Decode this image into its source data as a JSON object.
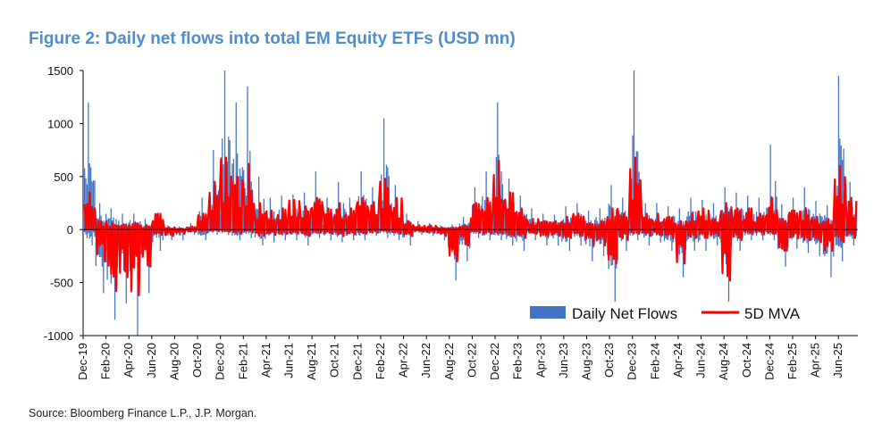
{
  "title": "Figure 2: Daily net flows into total EM Equity ETFs (USD mn)",
  "source": "Source: Bloomberg Finance L.P., J.P. Morgan.",
  "colors": {
    "title": "#4f8cc9",
    "bars": "#4472c4",
    "line": "#ff0000",
    "axis": "#000000"
  },
  "chart_data": {
    "type": "bar",
    "xlabel": "",
    "ylabel": "",
    "ylim": [
      -1000,
      1500
    ],
    "yticks": [
      -1000,
      -500,
      0,
      500,
      1000,
      1500
    ],
    "ytick_labels": [
      "-1000",
      "-500",
      "0",
      "500",
      "1000",
      "1500"
    ],
    "xlim": [
      "2019-12",
      "2025-08"
    ],
    "xtick_labels": [
      "Dec-19",
      "Feb-20",
      "Apr-20",
      "Jun-20",
      "Aug-20",
      "Oct-20",
      "Dec-20",
      "Feb-21",
      "Apr-21",
      "Jun-21",
      "Aug-21",
      "Oct-21",
      "Dec-21",
      "Feb-22",
      "Apr-22",
      "Jun-22",
      "Aug-22",
      "Oct-22",
      "Dec-22",
      "Feb-23",
      "Apr-23",
      "Jun-23",
      "Aug-23",
      "Oct-23",
      "Dec-23",
      "Feb-24",
      "Apr-24",
      "Jun-24",
      "Aug-24",
      "Oct-24",
      "Dec-24",
      "Feb-25",
      "Apr-25",
      "Jun-25"
    ],
    "grid": false,
    "legend": "bottom-right",
    "series": [
      {
        "name": "Daily Net Flows",
        "type": "bar",
        "x": [
          "Dec-19",
          "Jan-20",
          "Feb-20",
          "Mar-20",
          "Apr-20",
          "May-20",
          "Jun-20",
          "Jul-20",
          "Aug-20",
          "Sep-20",
          "Oct-20",
          "Nov-20",
          "Dec-20",
          "Jan-21",
          "Feb-21",
          "Mar-21",
          "Apr-21",
          "May-21",
          "Jun-21",
          "Jul-21",
          "Aug-21",
          "Sep-21",
          "Oct-21",
          "Nov-21",
          "Dec-21",
          "Jan-22",
          "Feb-22",
          "Mar-22",
          "Apr-22",
          "May-22",
          "Jun-22",
          "Jul-22",
          "Aug-22",
          "Sep-22",
          "Oct-22",
          "Nov-22",
          "Dec-22",
          "Jan-23",
          "Feb-23",
          "Mar-23",
          "Apr-23",
          "May-23",
          "Jun-23",
          "Jul-23",
          "Aug-23",
          "Sep-23",
          "Oct-23",
          "Nov-23",
          "Dec-23",
          "Jan-24",
          "Feb-24",
          "Mar-24",
          "Apr-24",
          "May-24",
          "Jun-24",
          "Jul-24",
          "Aug-24",
          "Sep-24",
          "Oct-24",
          "Nov-24",
          "Dec-24",
          "Jan-25",
          "Feb-25",
          "Mar-25",
          "Apr-25",
          "May-25",
          "Jun-25",
          "Jul-25"
        ],
        "max": [
          1200,
          250,
          200,
          150,
          150,
          100,
          150,
          40,
          30,
          60,
          300,
          750,
          1500,
          1200,
          1350,
          500,
          300,
          320,
          330,
          350,
          550,
          300,
          450,
          300,
          550,
          400,
          1050,
          420,
          150,
          80,
          60,
          40,
          50,
          120,
          400,
          550,
          1200,
          480,
          320,
          200,
          150,
          140,
          220,
          250,
          180,
          200,
          420,
          300,
          1500,
          250,
          250,
          220,
          200,
          300,
          280,
          250,
          400,
          350,
          320,
          300,
          800,
          240,
          300,
          400,
          270,
          230,
          1450,
          450
        ],
        "min": [
          -150,
          -600,
          -850,
          -700,
          -1000,
          -600,
          -200,
          -100,
          -100,
          -50,
          -100,
          -50,
          -50,
          -100,
          -80,
          -150,
          -120,
          -100,
          -100,
          -150,
          -80,
          -100,
          -120,
          -100,
          -100,
          -60,
          -80,
          -100,
          -150,
          -50,
          -60,
          -100,
          -480,
          -300,
          -80,
          -100,
          -100,
          -150,
          -200,
          -100,
          -150,
          -150,
          -200,
          -150,
          -300,
          -250,
          -680,
          -200,
          -100,
          -150,
          -120,
          -200,
          -450,
          -200,
          -200,
          -150,
          -680,
          -200,
          -100,
          -100,
          -100,
          -350,
          -180,
          -220,
          -250,
          -450,
          -300,
          -150
        ]
      },
      {
        "name": "5D MVA",
        "type": "line",
        "x": [
          "Dec-19",
          "Jan-20",
          "Feb-20",
          "Mar-20",
          "Apr-20",
          "May-20",
          "Jun-20",
          "Jul-20",
          "Aug-20",
          "Sep-20",
          "Oct-20",
          "Nov-20",
          "Dec-20",
          "Jan-21",
          "Feb-21",
          "Mar-21",
          "Apr-21",
          "May-21",
          "Jun-21",
          "Jul-21",
          "Aug-21",
          "Sep-21",
          "Oct-21",
          "Nov-21",
          "Dec-21",
          "Jan-22",
          "Feb-22",
          "Mar-22",
          "Apr-22",
          "May-22",
          "Jun-22",
          "Jul-22",
          "Aug-22",
          "Sep-22",
          "Oct-22",
          "Nov-22",
          "Dec-22",
          "Jan-23",
          "Feb-23",
          "Mar-23",
          "Apr-23",
          "May-23",
          "Jun-23",
          "Jul-23",
          "Aug-23",
          "Sep-23",
          "Oct-23",
          "Nov-23",
          "Dec-23",
          "Jan-24",
          "Feb-24",
          "Mar-24",
          "Apr-24",
          "May-24",
          "Jun-24",
          "Jul-24",
          "Aug-24",
          "Sep-24",
          "Oct-24",
          "Nov-24",
          "Dec-24",
          "Jan-25",
          "Feb-25",
          "Mar-25",
          "Apr-25",
          "May-25",
          "Jun-25",
          "Jul-25"
        ],
        "max": [
          350,
          80,
          60,
          50,
          60,
          40,
          150,
          20,
          10,
          30,
          150,
          450,
          680,
          500,
          620,
          250,
          180,
          200,
          280,
          220,
          300,
          200,
          250,
          200,
          300,
          260,
          480,
          300,
          80,
          40,
          40,
          20,
          20,
          40,
          250,
          300,
          650,
          350,
          200,
          100,
          80,
          80,
          120,
          150,
          60,
          80,
          200,
          150,
          680,
          150,
          150,
          120,
          80,
          150,
          200,
          100,
          250,
          200,
          200,
          150,
          300,
          100,
          180,
          200,
          120,
          100,
          600,
          300
        ],
        "min": [
          0,
          -300,
          -580,
          -450,
          -620,
          -350,
          -50,
          -60,
          -40,
          -20,
          -20,
          -10,
          -20,
          -40,
          -20,
          -60,
          -50,
          -40,
          -40,
          -60,
          -30,
          -40,
          -60,
          -40,
          -40,
          -30,
          -20,
          -40,
          -60,
          -20,
          -30,
          -60,
          -300,
          -150,
          -30,
          -40,
          -40,
          -60,
          -80,
          -40,
          -60,
          -60,
          -80,
          -60,
          -150,
          -150,
          -320,
          -100,
          -40,
          -60,
          -50,
          -80,
          -320,
          -80,
          -80,
          -60,
          -480,
          -100,
          -40,
          -40,
          -40,
          -200,
          -80,
          -100,
          -120,
          -200,
          -120,
          -80
        ]
      }
    ]
  }
}
